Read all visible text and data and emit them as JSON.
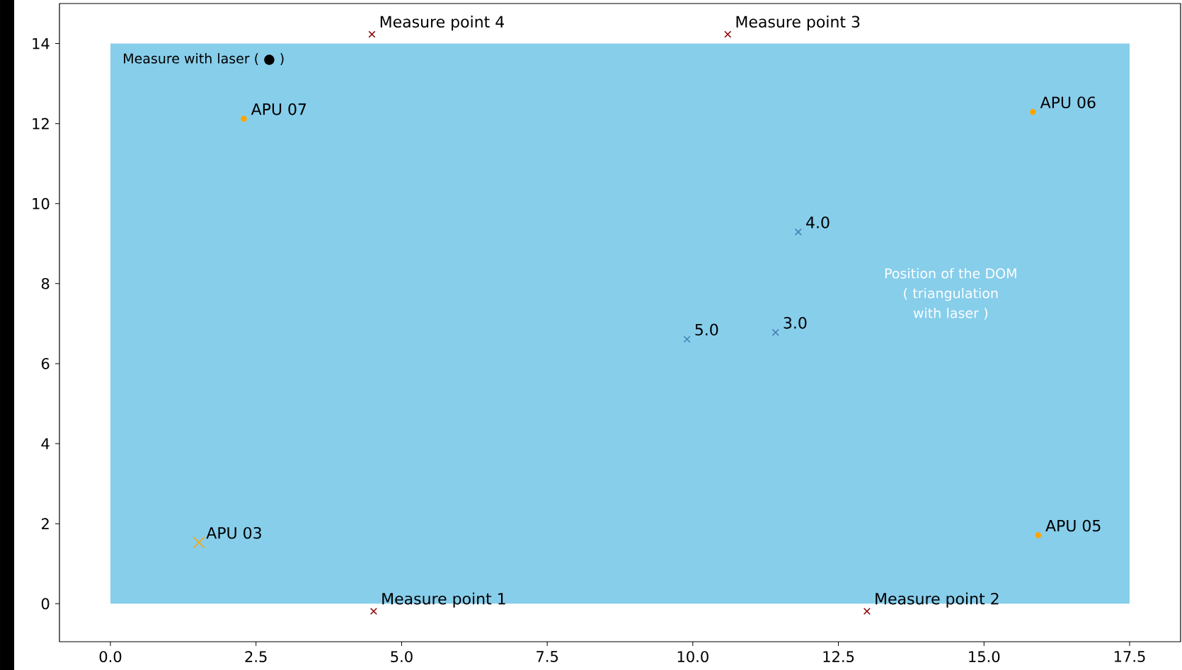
{
  "chart_data": {
    "type": "scatter",
    "xlim": [
      -0.875,
      18.375
    ],
    "ylim": [
      -0.95,
      15.0
    ],
    "xticks": [
      {
        "value": 0,
        "label": "0.0"
      },
      {
        "value": 2.5,
        "label": "2.5"
      },
      {
        "value": 5,
        "label": "5.0"
      },
      {
        "value": 7.5,
        "label": "7.5"
      },
      {
        "value": 10,
        "label": "10.0"
      },
      {
        "value": 12.5,
        "label": "12.5"
      },
      {
        "value": 15,
        "label": "15.0"
      },
      {
        "value": 17.5,
        "label": "17.5"
      }
    ],
    "yticks": [
      0,
      2,
      4,
      6,
      8,
      10,
      12,
      14
    ],
    "series": [
      {
        "type": "area",
        "color": "#87ceeb",
        "x": [
          0,
          17.5
        ],
        "values": [
          14,
          14
        ]
      },
      {
        "marker": "cross",
        "color": "#8b0000",
        "x": [
          4.49,
          10.6,
          4.52,
          12.99
        ],
        "values": [
          14.23,
          14.23,
          -0.19,
          -0.19
        ]
      },
      {
        "marker": "cross",
        "color": "#4682b4",
        "x": [
          11.81,
          9.9,
          11.42
        ],
        "values": [
          9.29,
          6.61,
          6.78
        ]
      },
      {
        "marker": "circle",
        "color": "#ffa500",
        "x": [
          2.29,
          15.84,
          15.93
        ],
        "values": [
          12.12,
          12.29,
          1.71
        ]
      },
      {
        "marker": "cross",
        "color": "#ffa500",
        "x": [
          1.52
        ],
        "values": [
          1.53
        ]
      }
    ],
    "annotations": [
      "Measure with laser ( ● )",
      "Position of the DOM ( triangulation with laser )",
      {
        "text": "Measure point 4",
        "x": 4.49,
        "y": 14.23
      },
      {
        "text": "Measure point 3",
        "x": 10.6,
        "y": 14.23
      },
      {
        "text": "Measure point 1",
        "x": 4.52,
        "y": -0.19
      },
      {
        "text": "Measure point 2",
        "x": 12.99,
        "y": -0.19
      },
      {
        "text": "4.0",
        "x": 11.81,
        "y": 9.29
      },
      {
        "text": "5.0",
        "x": 9.9,
        "y": 6.61
      },
      {
        "text": "3.0",
        "x": 11.42,
        "y": 6.78
      },
      {
        "text": "APU 07",
        "x": 2.29,
        "y": 12.12
      },
      {
        "text": "APU 06",
        "x": 15.84,
        "y": 12.29
      },
      {
        "text": "APU 05",
        "x": 15.93,
        "y": 1.71
      },
      {
        "text": "APU 03",
        "x": 1.52,
        "y": 1.53
      }
    ]
  }
}
